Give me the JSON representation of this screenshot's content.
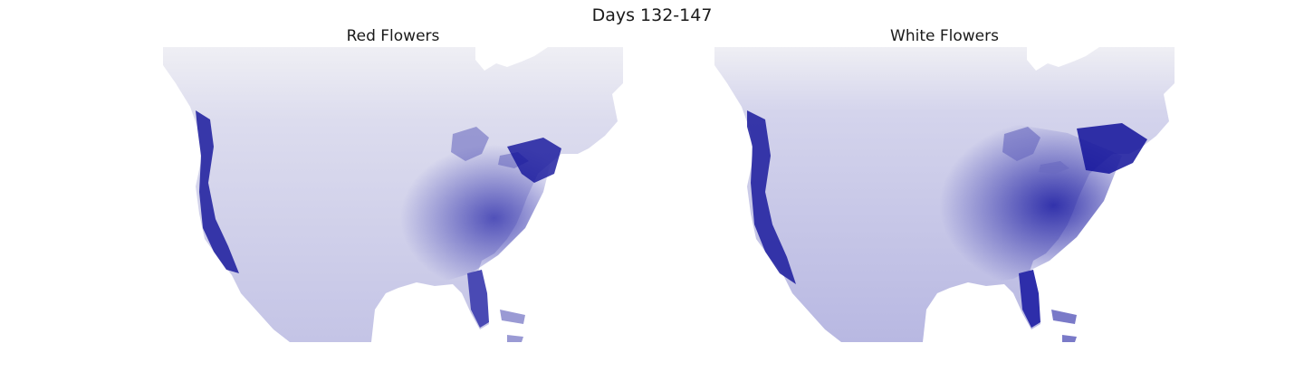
{
  "figure": {
    "title": "Days 132-147"
  },
  "panels": [
    {
      "title": "Red Flowers",
      "relative_intensity": 0.85,
      "color": "#1a1a9c"
    },
    {
      "title": "White Flowers",
      "relative_intensity": 1.0,
      "color": "#1a1a9c"
    }
  ],
  "colors": {
    "low": "#f0f0f4",
    "high": "#0d0d8c",
    "background": "#ffffff"
  }
}
